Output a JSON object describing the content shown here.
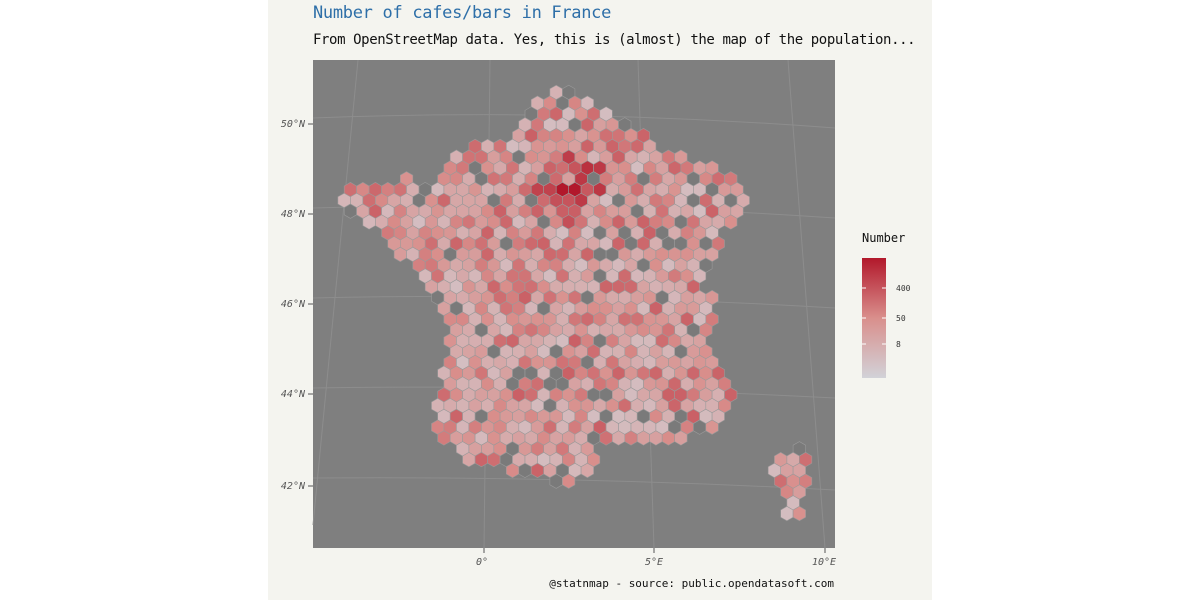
{
  "title": "Number of cafes/bars in France",
  "subtitle": "From OpenStreetMap data. Yes, this is (almost) the map of the population...",
  "caption": "@statnmap - source: public.opendatasoft.com",
  "colors": {
    "panel": "#7f7f7f",
    "background": "#f4f4ef",
    "low": "#d2d2d8",
    "mid": "#d98f8c",
    "high": "#b2182b",
    "missing": "#7a7a7a",
    "title": "#2e6fa8"
  },
  "axes": {
    "lat_ticks": [
      "50°N",
      "48°N",
      "46°N",
      "44°N",
      "42°N"
    ],
    "lon_ticks": [
      "0°",
      "5°E",
      "10°E"
    ]
  },
  "legend": {
    "title": "Number",
    "labels": [
      "400",
      "50",
      "8"
    ]
  },
  "chart_data": {
    "type": "heatmap",
    "projection": "conic",
    "legend_placement": "right",
    "grid": true,
    "color_scale": "log",
    "legend_breaks": [
      400,
      50,
      8
    ],
    "hotspot": "Paris"
  }
}
